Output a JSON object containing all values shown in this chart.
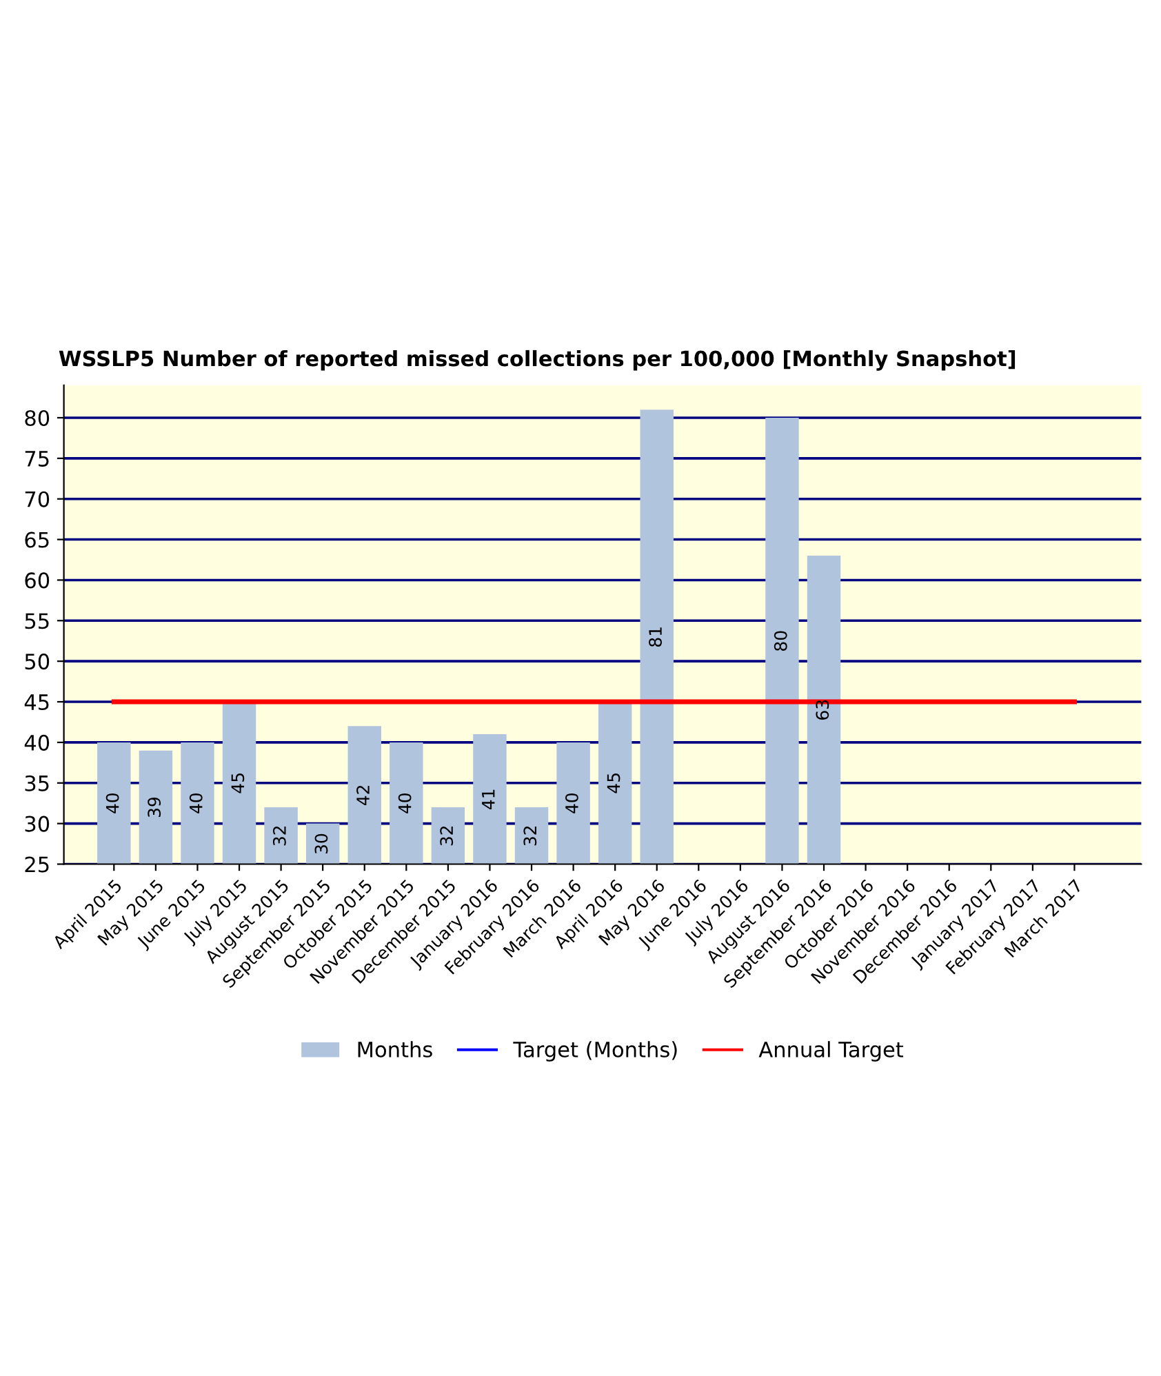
{
  "chart_data": {
    "type": "bar",
    "title": "WSSLP5 Number of reported missed collections per 100,000 [Monthly Snapshot]",
    "categories": [
      "April 2015",
      "May 2015",
      "June 2015",
      "July 2015",
      "August 2015",
      "September 2015",
      "October 2015",
      "November 2015",
      "December 2015",
      "January 2016",
      "February 2016",
      "March 2016",
      "April 2016",
      "May 2016",
      "June 2016",
      "July 2016",
      "August 2016",
      "September 2016",
      "October 2016",
      "November 2016",
      "December 2016",
      "January 2017",
      "February 2017",
      "March 2017"
    ],
    "series": [
      {
        "name": "Months",
        "color": "#b0c4de",
        "values": [
          40,
          39,
          40,
          45,
          32,
          30,
          42,
          40,
          32,
          41,
          32,
          40,
          45,
          81,
          null,
          null,
          80,
          63,
          null,
          null,
          null,
          null,
          null,
          null
        ],
        "value_labels": [
          "40",
          "39",
          "40",
          "45",
          "32",
          "30",
          "42",
          "40",
          "32",
          "41",
          "32",
          "40",
          "45",
          "81",
          null,
          null,
          "80",
          "63",
          null,
          null,
          null,
          null,
          null,
          null
        ]
      },
      {
        "name": "Target (Months)",
        "type": "line",
        "color": "#0000ff",
        "values": [
          null,
          null,
          null,
          null,
          null,
          null,
          null,
          null,
          null,
          null,
          null,
          null,
          null,
          null,
          null,
          null,
          null,
          null,
          null,
          null,
          null,
          null,
          null,
          null
        ]
      },
      {
        "name": "Annual Target",
        "type": "line",
        "color": "#ff0000",
        "values": [
          45,
          45,
          45,
          45,
          45,
          45,
          45,
          45,
          45,
          45,
          45,
          45,
          45,
          45,
          45,
          45,
          45,
          45,
          45,
          45,
          45,
          45,
          45,
          45
        ]
      }
    ],
    "ylim": [
      25,
      84
    ],
    "yticks": [
      25,
      30,
      35,
      40,
      45,
      50,
      55,
      60,
      65,
      70,
      75,
      80
    ],
    "grid": "y",
    "legend": "bottom"
  }
}
